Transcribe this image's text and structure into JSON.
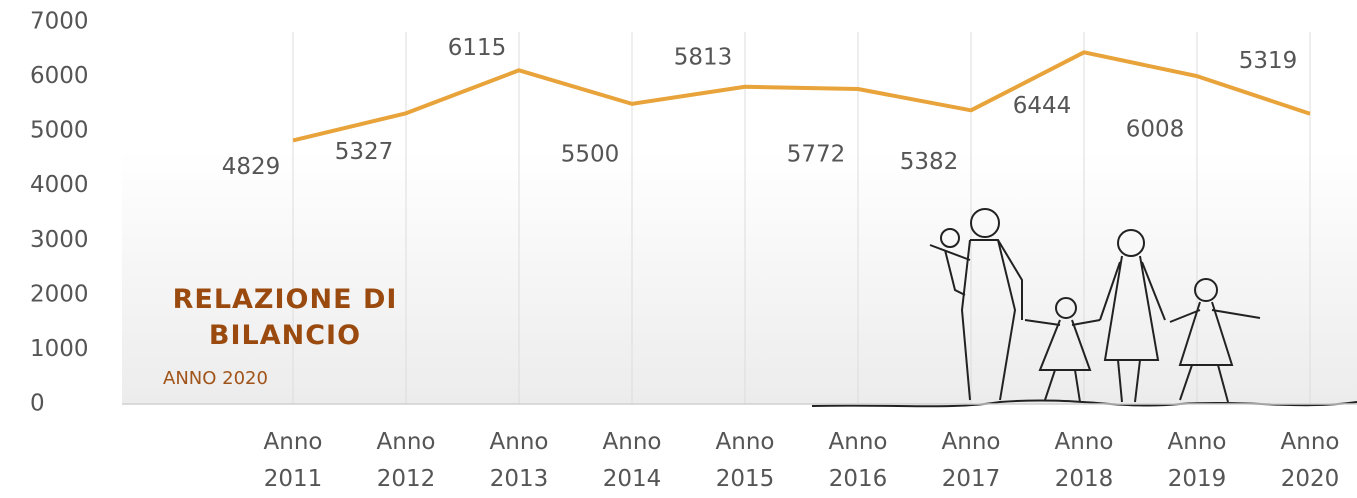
{
  "chart_data": {
    "type": "line",
    "annotations": [
      "RELAZIONE DI BILANCIO",
      "ANNO 2020"
    ],
    "categories": [
      "Anno 2011",
      "Anno 2012",
      "Anno 2013",
      "Anno 2014",
      "Anno 2015",
      "Anno 2016",
      "Anno 2017",
      "Anno 2018",
      "Anno 2019",
      "Anno 2020"
    ],
    "series": [
      {
        "color": "#e8a33a",
        "values": [
          4829,
          5327,
          6115,
          5500,
          5813,
          5772,
          5382,
          6444,
          6008,
          5319
        ]
      }
    ],
    "ylim": [
      0,
      7000
    ],
    "yticks": [
      0,
      1000,
      2000,
      3000,
      4000,
      5000,
      6000,
      7000
    ],
    "grid": true
  }
}
